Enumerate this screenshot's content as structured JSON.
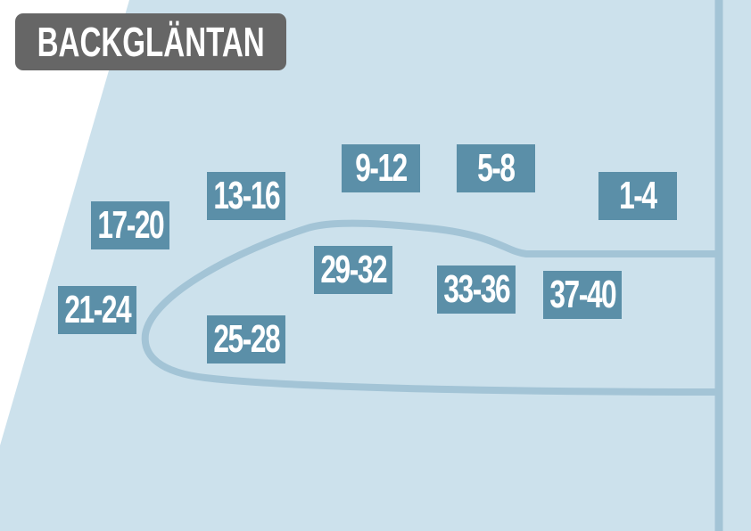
{
  "title": "BACKGLÄNTAN",
  "colors": {
    "land": "#cce1ec",
    "road": "#a3c4d6",
    "label_bg": "#5b8fa8",
    "title_bg": "#666666"
  },
  "lots": [
    {
      "label": "9-12"
    },
    {
      "label": "5-8"
    },
    {
      "label": "13-16"
    },
    {
      "label": "1-4"
    },
    {
      "label": "17-20"
    },
    {
      "label": "29-32"
    },
    {
      "label": "33-36"
    },
    {
      "label": "37-40"
    },
    {
      "label": "21-24"
    },
    {
      "label": "25-28"
    }
  ]
}
